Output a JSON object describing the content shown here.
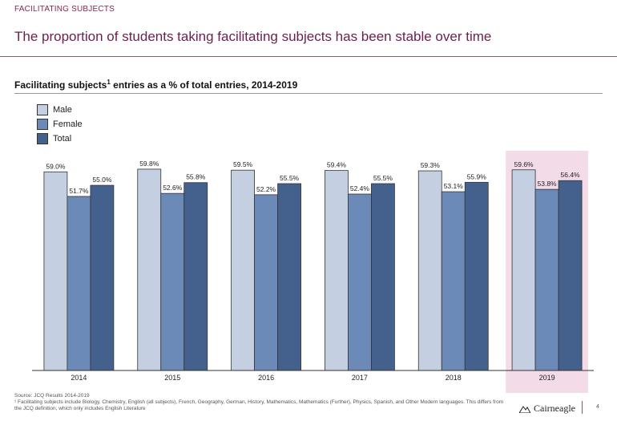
{
  "header": {
    "section_tag": "FACILITATING SUBJECTS",
    "title": "The proportion of students taking facilitating subjects has been stable over time"
  },
  "chart_title": {
    "main": "Facilitating subjects",
    "superscript": "1",
    "rest": " entries as a % of total entries, 2014-2019"
  },
  "chart_data": {
    "type": "bar",
    "categories": [
      "2014",
      "2015",
      "2016",
      "2017",
      "2018",
      "2019"
    ],
    "series": [
      {
        "name": "Male",
        "values": [
          59.0,
          59.8,
          59.5,
          59.4,
          59.3,
          59.6
        ],
        "color": "#c5cfe2",
        "labels": [
          "59.0%",
          "59.8%",
          "59.5%",
          "59.4%",
          "59.3%",
          "59.6%"
        ]
      },
      {
        "name": "Female",
        "values": [
          51.7,
          52.6,
          52.2,
          52.4,
          53.1,
          53.8
        ],
        "color": "#6c8ab8",
        "labels": [
          "51.7%",
          "52.6%",
          "52.2%",
          "52.4%",
          "53.1%",
          "53.8%"
        ]
      },
      {
        "name": "Total",
        "values": [
          55.0,
          55.8,
          55.5,
          55.5,
          55.9,
          56.4
        ],
        "color": "#44608c",
        "labels": [
          "55.0%",
          "55.8%",
          "55.5%",
          "55.5%",
          "55.9%",
          "56.4%"
        ]
      }
    ],
    "highlight_category": "2019",
    "highlight_color": "#f4dbe8",
    "ylim": [
      0,
      62
    ],
    "legend_position": "top-left"
  },
  "footer": {
    "source": "Source: JCQ Results 2014-2019",
    "note": "¹ Facilitating subjects include Biology, Chemistry, English (all subjects), French, Geography, German, History, Mathematics, Mathematics (Further), Physics, Spanish, and Other Modern languages. This differs from the JCQ definition, which only includes English Literature",
    "logo_text": "Cairneagle",
    "page_number": "4"
  }
}
